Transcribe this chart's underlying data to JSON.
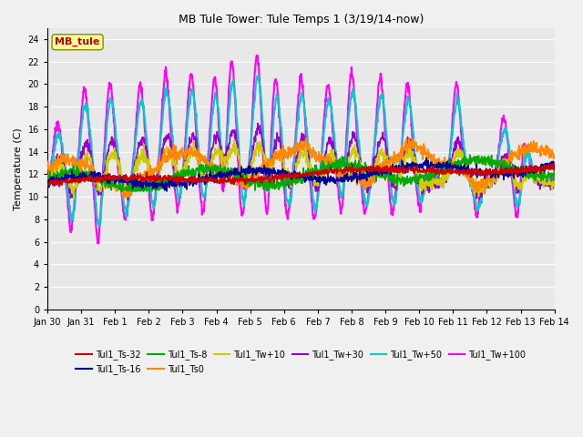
{
  "title": "MB Tule Tower: Tule Temps 1 (3/19/14-now)",
  "ylabel": "Temperature (C)",
  "ylim": [
    0,
    25
  ],
  "yticks": [
    0,
    2,
    4,
    6,
    8,
    10,
    12,
    14,
    16,
    18,
    20,
    22,
    24
  ],
  "xtick_labels": [
    "Jan 30",
    "Jan 31",
    "Feb 1",
    "Feb 2",
    "Feb 3",
    "Feb 4",
    "Feb 5",
    "Feb 6",
    "Feb 7",
    "Feb 8",
    "Feb 9",
    "Feb 10",
    "Feb 11",
    "Feb 12",
    "Feb 13",
    "Feb 14"
  ],
  "series": {
    "Tul1_Ts-32": {
      "color": "#cc0000",
      "lw": 1.2,
      "zorder": 5
    },
    "Tul1_Ts-16": {
      "color": "#000099",
      "lw": 1.2,
      "zorder": 4
    },
    "Tul1_Ts-8": {
      "color": "#00aa00",
      "lw": 1.2,
      "zorder": 4
    },
    "Tul1_Ts0": {
      "color": "#ff8800",
      "lw": 1.2,
      "zorder": 4
    },
    "Tul1_Tw+10": {
      "color": "#cccc00",
      "lw": 1.2,
      "zorder": 3
    },
    "Tul1_Tw+30": {
      "color": "#9900cc",
      "lw": 1.2,
      "zorder": 3
    },
    "Tul1_Tw+50": {
      "color": "#00cccc",
      "lw": 1.5,
      "zorder": 2
    },
    "Tul1_Tw+100": {
      "color": "#ff00ff",
      "lw": 1.5,
      "zorder": 1
    }
  },
  "legend_box_color": "#ffff99",
  "legend_box_text": "MB_tule",
  "legend_box_text_color": "#cc0000",
  "plot_bg": "#e8e8e8",
  "fig_bg": "#f0f0f0",
  "grid_color": "#ffffff"
}
